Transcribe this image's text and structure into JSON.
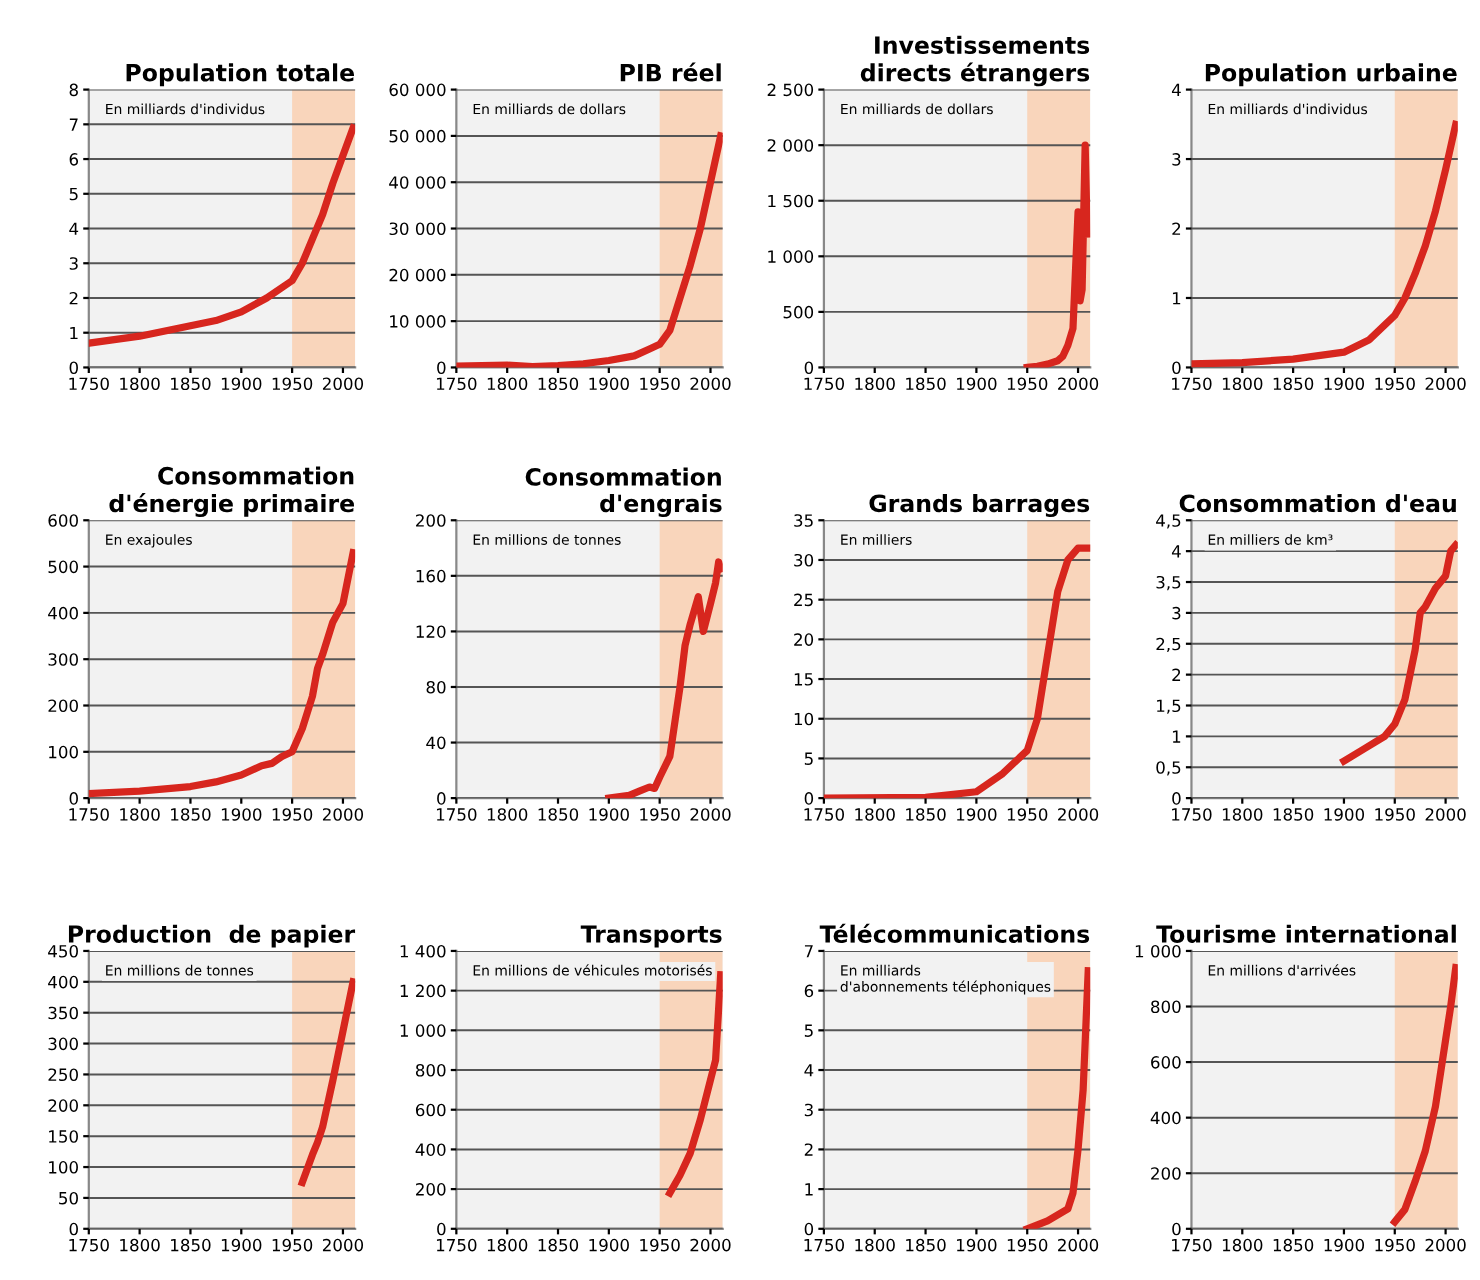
{
  "chart_data": [
    {
      "type": "line",
      "title": "Population totale",
      "annotations": [
        "En milliards d'individus"
      ],
      "x": [
        1750,
        1775,
        1800,
        1825,
        1850,
        1875,
        1900,
        1925,
        1950,
        1960,
        1970,
        1980,
        1990,
        2000,
        2010
      ],
      "series": [
        {
          "color": "#d7261e",
          "values": [
            0.7,
            0.8,
            0.9,
            1.05,
            1.2,
            1.35,
            1.6,
            2.0,
            2.5,
            3.0,
            3.7,
            4.4,
            5.3,
            6.1,
            6.9
          ]
        }
      ],
      "xlim": [
        1750,
        2012
      ],
      "xticks": [
        1750,
        1800,
        1850,
        1900,
        1950,
        2000
      ],
      "ylim": [
        0,
        8
      ],
      "yticks": [
        0,
        1,
        2,
        3,
        4,
        5,
        6,
        7,
        8
      ],
      "bands": [
        {
          "axis": "x",
          "from": 1950,
          "to": 2012,
          "color": "#f9d5bb"
        }
      ],
      "grid": "y",
      "line_style": "solid"
    },
    {
      "type": "line",
      "title": "PIB réel",
      "annotations": [
        "En milliards de dollars"
      ],
      "x": [
        1750,
        1800,
        1825,
        1850,
        1875,
        1900,
        1925,
        1940,
        1950,
        1960,
        1970,
        1980,
        1990,
        2000,
        2010
      ],
      "series": [
        {
          "color": "#d7261e",
          "values": [
            300,
            500,
            200,
            400,
            800,
            1500,
            2500,
            4000,
            5000,
            8000,
            15000,
            22000,
            30000,
            40000,
            50000
          ]
        }
      ],
      "xlim": [
        1750,
        2012
      ],
      "xticks": [
        1750,
        1800,
        1850,
        1900,
        1950,
        2000
      ],
      "ylim": [
        0,
        60000
      ],
      "yticks": [
        0,
        {
          "value": 10000,
          "label": "10 000"
        },
        {
          "value": 20000,
          "label": "20 000"
        },
        {
          "value": 30000,
          "label": "30 000"
        },
        {
          "value": 40000,
          "label": "40 000"
        },
        {
          "value": 50000,
          "label": "50 000"
        },
        {
          "value": 60000,
          "label": "60 000"
        }
      ],
      "bands": [
        {
          "axis": "x",
          "from": 1950,
          "to": 2012,
          "color": "#f9d5bb"
        }
      ],
      "grid": "y",
      "line_style": "solid"
    },
    {
      "type": "line",
      "title": "Investissements\ndirects étrangers",
      "annotations": [
        "En milliards de dollars"
      ],
      "x": [
        1950,
        1960,
        1970,
        1980,
        1985,
        1990,
        1995,
        2000,
        2002,
        2004,
        2007,
        2009
      ],
      "series": [
        {
          "color": "#d7261e",
          "values": [
            0,
            10,
            30,
            60,
            100,
            200,
            350,
            1400,
            600,
            700,
            2000,
            1200
          ]
        }
      ],
      "xlim": [
        1750,
        2012
      ],
      "xticks": [
        1750,
        1800,
        1850,
        1900,
        1950,
        2000
      ],
      "ylim": [
        0,
        2500
      ],
      "yticks": [
        0,
        500,
        {
          "value": 1000,
          "label": "1 000"
        },
        {
          "value": 1500,
          "label": "1 500"
        },
        {
          "value": 2000,
          "label": "2 000"
        },
        {
          "value": 2500,
          "label": "2 500"
        }
      ],
      "bands": [
        {
          "axis": "x",
          "from": 1950,
          "to": 2012,
          "color": "#f9d5bb"
        }
      ],
      "grid": "y",
      "line_style": "solid"
    },
    {
      "type": "line",
      "title": "Population urbaine",
      "annotations": [
        "En milliards d'individus"
      ],
      "x": [
        1750,
        1800,
        1850,
        1900,
        1925,
        1950,
        1960,
        1970,
        1980,
        1990,
        2000,
        2010
      ],
      "series": [
        {
          "color": "#d7261e",
          "values": [
            0.05,
            0.07,
            0.12,
            0.22,
            0.4,
            0.75,
            1.0,
            1.35,
            1.75,
            2.25,
            2.85,
            3.5
          ]
        }
      ],
      "xlim": [
        1750,
        2012
      ],
      "xticks": [
        1750,
        1800,
        1850,
        1900,
        1950,
        2000
      ],
      "ylim": [
        0,
        4
      ],
      "yticks": [
        0,
        1,
        2,
        3,
        4
      ],
      "bands": [
        {
          "axis": "x",
          "from": 1950,
          "to": 2012,
          "color": "#f9d5bb"
        }
      ],
      "grid": "y",
      "line_style": "solid"
    },
    {
      "type": "line",
      "title": "Consommation\nd'énergie primaire",
      "annotations": [
        "En exajoules"
      ],
      "x": [
        1750,
        1800,
        1850,
        1875,
        1900,
        1920,
        1930,
        1940,
        1950,
        1960,
        1970,
        1975,
        1980,
        1990,
        2000,
        2010
      ],
      "series": [
        {
          "color": "#d7261e",
          "values": [
            10,
            15,
            25,
            35,
            50,
            70,
            75,
            90,
            100,
            150,
            220,
            280,
            310,
            380,
            420,
            530
          ]
        }
      ],
      "xlim": [
        1750,
        2012
      ],
      "xticks": [
        1750,
        1800,
        1850,
        1900,
        1950,
        2000
      ],
      "ylim": [
        0,
        600
      ],
      "yticks": [
        0,
        100,
        200,
        300,
        400,
        500,
        600
      ],
      "bands": [
        {
          "axis": "x",
          "from": 1950,
          "to": 2012,
          "color": "#f9d5bb"
        }
      ],
      "grid": "y",
      "line_style": "solid"
    },
    {
      "type": "line",
      "title": "Consommation\nd'engrais",
      "annotations": [
        "En millions de tonnes"
      ],
      "x": [
        1900,
        1920,
        1930,
        1940,
        1945,
        1950,
        1960,
        1970,
        1975,
        1980,
        1988,
        1993,
        2000,
        2005,
        2008,
        2010
      ],
      "series": [
        {
          "color": "#d7261e",
          "values": [
            0,
            2,
            5,
            8,
            7,
            15,
            30,
            80,
            110,
            125,
            145,
            120,
            140,
            155,
            170,
            165
          ]
        }
      ],
      "xlim": [
        1750,
        2012
      ],
      "xticks": [
        1750,
        1800,
        1850,
        1900,
        1950,
        2000
      ],
      "ylim": [
        0,
        200
      ],
      "yticks": [
        0,
        40,
        80,
        120,
        160,
        200
      ],
      "bands": [
        {
          "axis": "x",
          "from": 1950,
          "to": 2012,
          "color": "#f9d5bb"
        }
      ],
      "grid": "y",
      "line_style": "solid"
    },
    {
      "type": "line",
      "title": "Grands barrages",
      "annotations": [
        "En milliers"
      ],
      "x": [
        1750,
        1850,
        1900,
        1925,
        1950,
        1960,
        1970,
        1980,
        1990,
        2000,
        2010
      ],
      "series": [
        {
          "color": "#d7261e",
          "values": [
            0,
            0.1,
            0.8,
            3,
            6,
            10,
            18,
            26,
            30,
            31.5,
            31.5
          ]
        }
      ],
      "xlim": [
        1750,
        2012
      ],
      "xticks": [
        1750,
        1800,
        1850,
        1900,
        1950,
        2000
      ],
      "ylim": [
        0,
        35
      ],
      "yticks": [
        0,
        5,
        10,
        15,
        20,
        25,
        30,
        35
      ],
      "bands": [
        {
          "axis": "x",
          "from": 1950,
          "to": 2012,
          "color": "#f9d5bb"
        }
      ],
      "grid": "y",
      "line_style": "solid"
    },
    {
      "type": "line",
      "title": "Consommation d'eau",
      "annotations": [
        "En milliers de km³"
      ],
      "x": [
        1900,
        1920,
        1940,
        1950,
        1960,
        1970,
        1975,
        1980,
        1990,
        2000,
        2005,
        2010
      ],
      "series": [
        {
          "color": "#d7261e",
          "values": [
            0.6,
            0.8,
            1.0,
            1.2,
            1.6,
            2.4,
            3.0,
            3.1,
            3.4,
            3.6,
            4.0,
            4.1
          ]
        }
      ],
      "xlim": [
        1750,
        2012
      ],
      "xticks": [
        1750,
        1800,
        1850,
        1900,
        1950,
        2000
      ],
      "ylim": [
        0,
        4.5
      ],
      "yticks": [
        0,
        {
          "value": 0.5,
          "label": "0,5"
        },
        1,
        {
          "value": 1.5,
          "label": "1,5"
        },
        2,
        {
          "value": 2.5,
          "label": "2,5"
        },
        3,
        {
          "value": 3.5,
          "label": "3,5"
        },
        4,
        {
          "value": 4.5,
          "label": "4,5"
        }
      ],
      "bands": [
        {
          "axis": "x",
          "from": 1950,
          "to": 2012,
          "color": "#f9d5bb"
        }
      ],
      "grid": "y",
      "line_style": "solid"
    },
    {
      "type": "line",
      "title": "Production  de papier",
      "annotations": [
        "En millions de tonnes"
      ],
      "x": [
        1960,
        1970,
        1975,
        1980,
        1990,
        2000,
        2010
      ],
      "series": [
        {
          "color": "#d7261e",
          "values": [
            75,
            120,
            140,
            165,
            240,
            320,
            400
          ]
        }
      ],
      "xlim": [
        1750,
        2012
      ],
      "xticks": [
        1750,
        1800,
        1850,
        1900,
        1950,
        2000
      ],
      "ylim": [
        0,
        450
      ],
      "yticks": [
        0,
        50,
        100,
        150,
        200,
        250,
        300,
        350,
        400,
        450
      ],
      "bands": [
        {
          "axis": "x",
          "from": 1950,
          "to": 2012,
          "color": "#f9d5bb"
        }
      ],
      "grid": "y",
      "line_style": "solid"
    },
    {
      "type": "line",
      "title": "Transports",
      "annotations": [
        "En millions de véhicules motorisés"
      ],
      "x": [
        1960,
        1970,
        1980,
        1990,
        2000,
        2005,
        2010
      ],
      "series": [
        {
          "color": "#d7261e",
          "values": [
            180,
            270,
            380,
            550,
            750,
            850,
            1280
          ]
        }
      ],
      "xlim": [
        1750,
        2012
      ],
      "xticks": [
        1750,
        1800,
        1850,
        1900,
        1950,
        2000
      ],
      "ylim": [
        0,
        1400
      ],
      "yticks": [
        0,
        200,
        400,
        600,
        800,
        {
          "value": 1000,
          "label": "1 000"
        },
        {
          "value": 1200,
          "label": "1 200"
        },
        {
          "value": 1400,
          "label": "1 400"
        }
      ],
      "bands": [
        {
          "axis": "x",
          "from": 1950,
          "to": 2012,
          "color": "#f9d5bb"
        }
      ],
      "grid": "y",
      "line_style": "solid"
    },
    {
      "type": "line",
      "title": "Télécommunications",
      "annotations": [
        "En milliards\nd'abonnements téléphoniques"
      ],
      "x": [
        1950,
        1960,
        1970,
        1980,
        1990,
        1995,
        2000,
        2005,
        2010
      ],
      "series": [
        {
          "color": "#d7261e",
          "values": [
            0,
            0.1,
            0.2,
            0.35,
            0.5,
            0.9,
            2.0,
            3.5,
            6.5
          ]
        }
      ],
      "xlim": [
        1750,
        2012
      ],
      "xticks": [
        1750,
        1800,
        1850,
        1900,
        1950,
        2000
      ],
      "ylim": [
        0,
        7
      ],
      "yticks": [
        0,
        1,
        2,
        3,
        4,
        5,
        6,
        7
      ],
      "bands": [
        {
          "axis": "x",
          "from": 1950,
          "to": 2012,
          "color": "#f9d5bb"
        }
      ],
      "grid": "y",
      "line_style": "solid"
    },
    {
      "type": "line",
      "title": "Tourisme international",
      "annotations": [
        "En millions d'arrivées"
      ],
      "x": [
        1950,
        1960,
        1970,
        1980,
        1990,
        2000,
        2005,
        2010
      ],
      "series": [
        {
          "color": "#d7261e",
          "values": [
            25,
            70,
            170,
            280,
            440,
            680,
            800,
            940
          ]
        }
      ],
      "xlim": [
        1750,
        2012
      ],
      "xticks": [
        1750,
        1800,
        1850,
        1900,
        1950,
        2000
      ],
      "ylim": [
        0,
        1000
      ],
      "yticks": [
        0,
        200,
        400,
        600,
        800,
        {
          "value": 1000,
          "label": "1 000"
        }
      ],
      "bands": [
        {
          "axis": "x",
          "from": 1950,
          "to": 2012,
          "color": "#f9d5bb"
        }
      ],
      "grid": "y",
      "line_style": "solid"
    }
  ]
}
